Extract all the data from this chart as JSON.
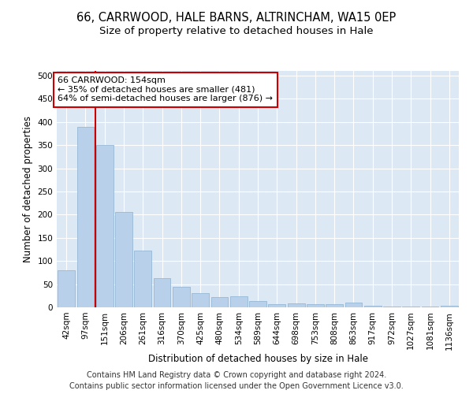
{
  "title1": "66, CARRWOOD, HALE BARNS, ALTRINCHAM, WA15 0EP",
  "title2": "Size of property relative to detached houses in Hale",
  "xlabel": "Distribution of detached houses by size in Hale",
  "ylabel": "Number of detached properties",
  "categories": [
    "42sqm",
    "97sqm",
    "151sqm",
    "206sqm",
    "261sqm",
    "316sqm",
    "370sqm",
    "425sqm",
    "480sqm",
    "534sqm",
    "589sqm",
    "644sqm",
    "698sqm",
    "753sqm",
    "808sqm",
    "863sqm",
    "917sqm",
    "972sqm",
    "1027sqm",
    "1081sqm",
    "1136sqm"
  ],
  "values": [
    80,
    390,
    350,
    205,
    122,
    63,
    45,
    30,
    22,
    24,
    13,
    6,
    8,
    7,
    6,
    10,
    4,
    2,
    1,
    1,
    3
  ],
  "bar_color": "#b8d0ea",
  "bar_edge_color": "#8ab0d0",
  "property_line_color": "#cc0000",
  "annotation_text": "66 CARRWOOD: 154sqm\n← 35% of detached houses are smaller (481)\n64% of semi-detached houses are larger (876) →",
  "annotation_box_color": "#cc0000",
  "background_color": "#dde8f5",
  "ylim": [
    0,
    510
  ],
  "yticks": [
    0,
    50,
    100,
    150,
    200,
    250,
    300,
    350,
    400,
    450,
    500
  ],
  "footer_line1": "Contains HM Land Registry data © Crown copyright and database right 2024.",
  "footer_line2": "Contains public sector information licensed under the Open Government Licence v3.0.",
  "title1_fontsize": 10.5,
  "title2_fontsize": 9.5,
  "axis_label_fontsize": 8.5,
  "tick_fontsize": 7.5,
  "annotation_fontsize": 8,
  "footer_fontsize": 7
}
